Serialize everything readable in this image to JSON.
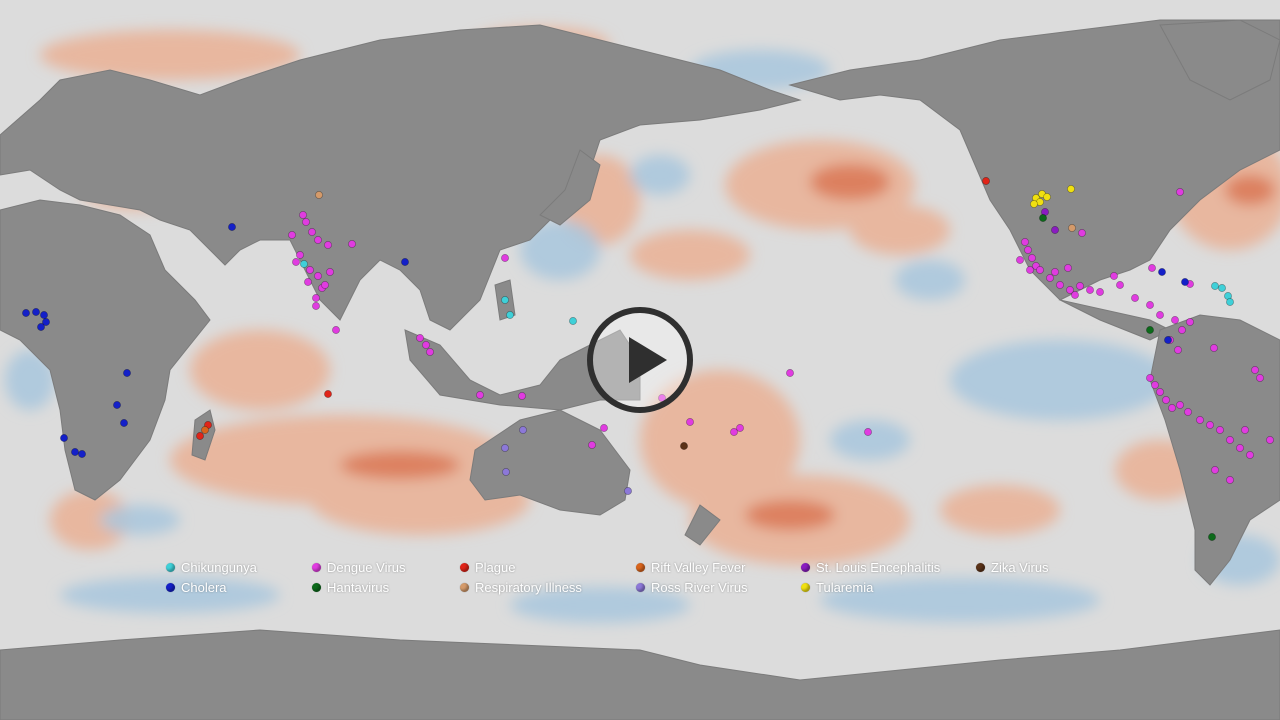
{
  "video": {
    "play_icon": "play-icon",
    "play_label": "Play video"
  },
  "colors": {
    "ocean": "#dcdcdc",
    "land": "#8a8a8a",
    "anomaly_warm": "#e9a98a",
    "anomaly_warm_strong": "#d9724f",
    "anomaly_cool": "#a8c6dc"
  },
  "legend": [
    {
      "label": "Chikungunya",
      "color": "#3fd0d8"
    },
    {
      "label": "Cholera",
      "color": "#1420c8"
    },
    {
      "label": "Dengue Virus",
      "color": "#e03ce0"
    },
    {
      "label": "Hantavirus",
      "color": "#0c6a1a"
    },
    {
      "label": "Plague",
      "color": "#e02418"
    },
    {
      "label": "Respiratory Illness",
      "color": "#d49a6a"
    },
    {
      "label": "Rift Valley Fever",
      "color": "#d8641c"
    },
    {
      "label": "Ross River Virus",
      "color": "#8c78d8"
    },
    {
      "label": "St. Louis Encephalitis",
      "color": "#8a1cc0"
    },
    {
      "label": "Tularemia",
      "color": "#f0e010"
    },
    {
      "label": "Zika Virus",
      "color": "#5a3218"
    }
  ]
}
